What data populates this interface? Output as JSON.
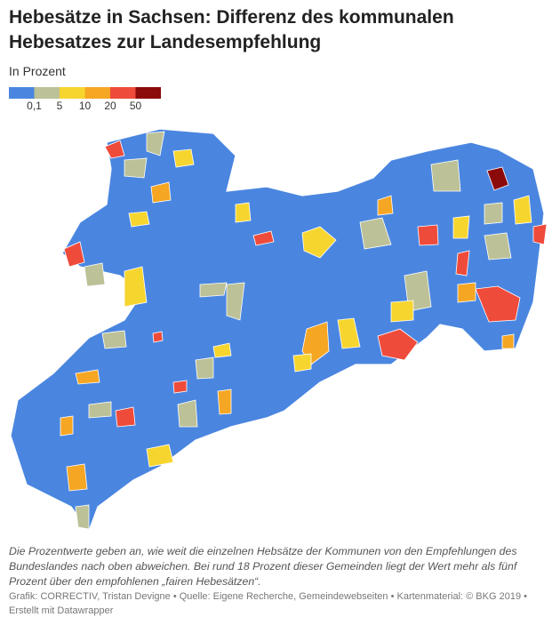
{
  "header": {
    "title": "Hebesätze in Sachsen: Differenz des kommunalen Hebesatzes zur Landesempfehlung",
    "subtitle": "In Prozent"
  },
  "legend": {
    "colors": [
      "#4a86e0",
      "#bcc197",
      "#f7d52f",
      "#f5a623",
      "#ef4b3b",
      "#8b0a0a"
    ],
    "labels": [
      "0,1",
      "5",
      "10",
      "20",
      "50"
    ]
  },
  "notes": "Die Prozentwerte geben an, wie weit die einzelnen Hebsätze der Kommunen von den Empfehlungen des Bundeslandes nach oben abweichen. Bei rund 18 Prozent dieser Gemeinden liegt der Wert mehr als fünf Prozent über den empfohlenen „fairen Hebesätzen“.",
  "footer": "Grafik: CORRECTIV, Tristan Devigne • Quelle: Eigene Recherche, Gemeindewebseiten • Kartenmaterial: © BKG 2019 • Erstellt mit Datawrapper"
}
